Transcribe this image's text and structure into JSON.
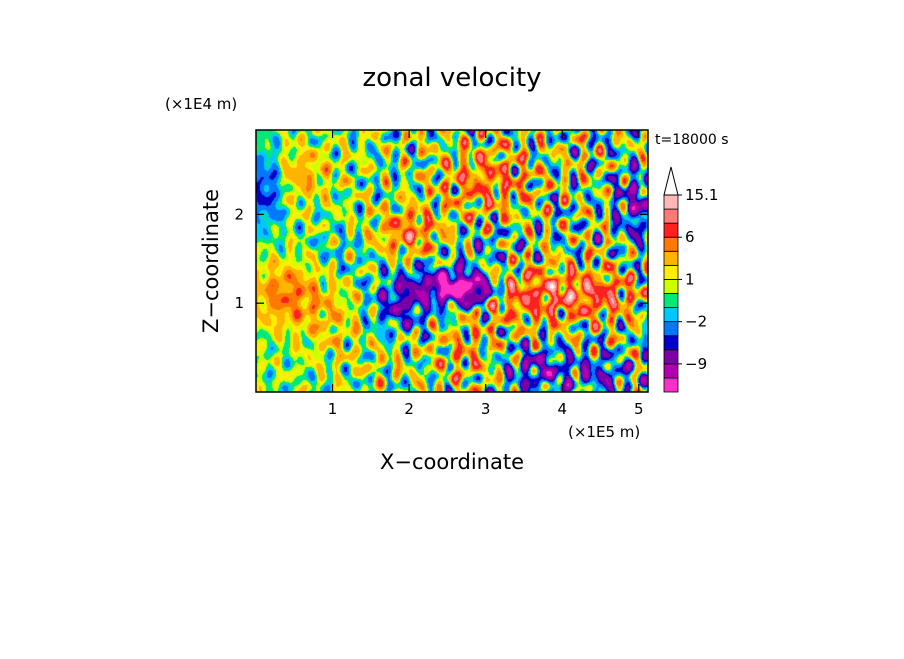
{
  "chart_data": {
    "type": "heatmap",
    "title": "zonal velocity",
    "xlabel": "X−coordinate",
    "ylabel": "Z−coordinate",
    "x_unit": "(×1E5 m)",
    "y_unit": "(×1E4 m)",
    "time_label": "t=18000 s",
    "xlim": [
      0,
      5.12
    ],
    "ylim": [
      0,
      2.95
    ],
    "x_ticks": [
      {
        "value": 1,
        "label": "1"
      },
      {
        "value": 2,
        "label": "2"
      },
      {
        "value": 3,
        "label": "3"
      },
      {
        "value": 4,
        "label": "4"
      },
      {
        "value": 5,
        "label": "5"
      }
    ],
    "y_ticks": [
      {
        "value": 1,
        "label": "1"
      },
      {
        "value": 2,
        "label": "2"
      }
    ],
    "colorbar": {
      "levels": [
        -12,
        -9,
        -6,
        -4,
        -2,
        -1,
        0,
        1,
        2,
        4,
        6,
        9,
        12,
        15.1
      ],
      "labeled_levels": [
        {
          "value": 15.1,
          "label": "15.1"
        },
        {
          "value": 6,
          "label": "6"
        },
        {
          "value": 1,
          "label": "1"
        },
        {
          "value": -2,
          "label": "−2"
        },
        {
          "value": -9,
          "label": "−9"
        }
      ],
      "colors": [
        "#ff2ec8",
        "#b000b0",
        "#7a00a8",
        "#0000c8",
        "#0078ff",
        "#00c8ff",
        "#00e87a",
        "#ccff00",
        "#ffee00",
        "#ffb400",
        "#ff7800",
        "#ff2020",
        "#ff7878",
        "#ffb8b8"
      ],
      "extend": "max"
    },
    "field_structures": [
      {
        "x": 0.4,
        "z": 1.1,
        "sx": 0.45,
        "sz": 0.35,
        "value": 5
      },
      {
        "x": 1.0,
        "z": 0.8,
        "sx": 0.4,
        "sz": 0.45,
        "value": 2
      },
      {
        "x": 1.9,
        "z": 1.0,
        "sx": 0.35,
        "sz": 0.3,
        "value": -6
      },
      {
        "x": 2.5,
        "z": 1.2,
        "sx": 0.45,
        "sz": 0.2,
        "value": -9
      },
      {
        "x": 2.8,
        "z": 1.15,
        "sx": 0.35,
        "sz": 0.15,
        "value": -11
      },
      {
        "x": 1.7,
        "z": 0.3,
        "sx": 0.3,
        "sz": 0.25,
        "value": 1
      },
      {
        "x": 2.7,
        "z": 0.4,
        "sx": 0.4,
        "sz": 0.35,
        "value": 3
      },
      {
        "x": 3.6,
        "z": 1.1,
        "sx": 0.7,
        "sz": 0.3,
        "value": 7
      },
      {
        "x": 4.5,
        "z": 1.1,
        "sx": 0.5,
        "sz": 0.25,
        "value": 6
      },
      {
        "x": 3.7,
        "z": 0.25,
        "sx": 0.4,
        "sz": 0.25,
        "value": -6
      },
      {
        "x": 4.5,
        "z": 0.2,
        "sx": 0.4,
        "sz": 0.2,
        "value": -5
      },
      {
        "x": 5.0,
        "z": 2.1,
        "sx": 0.3,
        "sz": 0.4,
        "value": -6
      },
      {
        "x": 2.0,
        "z": 1.8,
        "sx": 0.4,
        "sz": 0.25,
        "value": 6
      },
      {
        "x": 0.15,
        "z": 2.3,
        "sx": 0.2,
        "sz": 0.4,
        "value": -5
      },
      {
        "x": 0.6,
        "z": 2.45,
        "sx": 0.4,
        "sz": 0.3,
        "value": 3
      },
      {
        "x": 1.0,
        "z": 1.5,
        "sx": 0.5,
        "sz": 0.3,
        "value": -1
      },
      {
        "x": 3.0,
        "z": 2.4,
        "sx": 0.6,
        "sz": 0.4,
        "value": 5
      },
      {
        "x": 3.0,
        "z": 1.6,
        "sx": 0.5,
        "sz": 0.25,
        "value": -2
      }
    ],
    "field_waves": [
      {
        "ax": 18,
        "az": 9,
        "value": 5
      },
      {
        "ax": 23,
        "az": -13,
        "value": 4
      },
      {
        "ax": 9,
        "az": 25,
        "value": 3
      }
    ]
  }
}
